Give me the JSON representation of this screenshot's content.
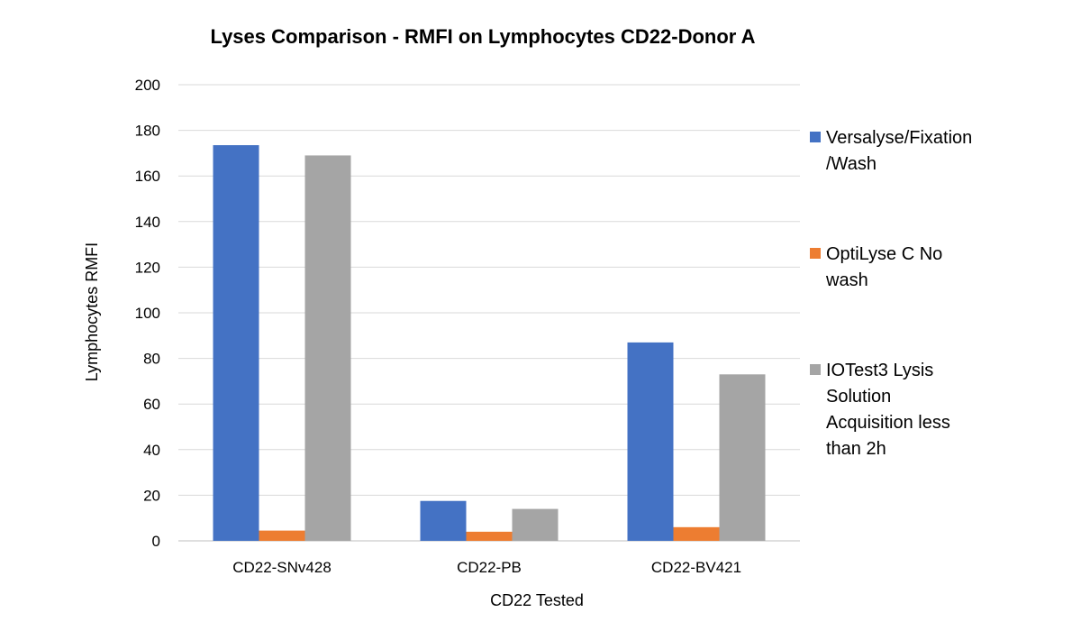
{
  "chart_data": {
    "type": "bar",
    "title": "Lyses Comparison - RMFI on Lymphocytes CD22-Donor A",
    "xlabel": "CD22 Tested",
    "ylabel": "Lymphocytes RMFI",
    "ylim": [
      0,
      200
    ],
    "yticks": [
      0,
      20,
      40,
      60,
      80,
      100,
      120,
      140,
      160,
      180,
      200
    ],
    "grid": true,
    "legend_position": "right",
    "categories": [
      "CD22-SNv428",
      "CD22-PB",
      "CD22-BV421"
    ],
    "series": [
      {
        "name": "Versalyse/Fixation /Wash",
        "legend_lines": [
          "Versalyse/Fixation",
          "/Wash"
        ],
        "color": "#4472c4",
        "values": [
          173.5,
          17.5,
          87
        ]
      },
      {
        "name": "OptiLyse C No wash",
        "legend_lines": [
          "OptiLyse C No",
          "wash"
        ],
        "color": "#ed7d31",
        "values": [
          4.5,
          4,
          6
        ]
      },
      {
        "name": "IOTest3 Lysis Solution Acquisition less than 2h",
        "legend_lines": [
          "IOTest3 Lysis",
          "Solution",
          "Acquisition less",
          "than 2h"
        ],
        "color": "#a5a5a5",
        "values": [
          169,
          14,
          73
        ]
      }
    ]
  }
}
